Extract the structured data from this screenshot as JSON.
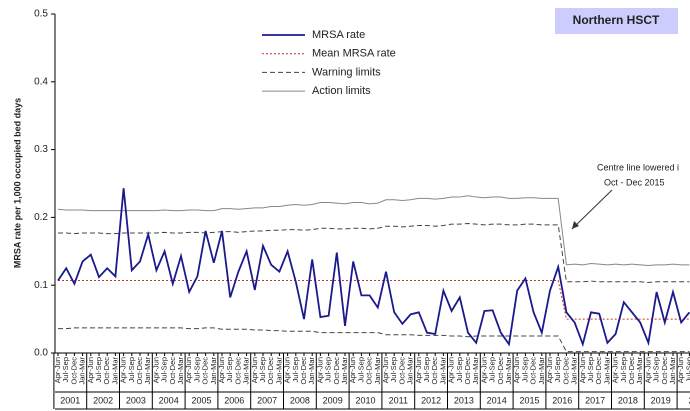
{
  "chart_data": {
    "type": "line",
    "title": "Northern HSCT",
    "ylabel": "MRSA rate per 1,000 occupied bed days",
    "annotation": [
      "Centre line lowered i",
      "Oct - Dec 2015"
    ],
    "ylim": [
      0,
      0.5
    ],
    "yticks": [
      {
        "value": 0,
        "label": "0.0"
      },
      {
        "value": 0.1,
        "label": "0.1"
      },
      {
        "value": 0.2,
        "label": "0.2"
      },
      {
        "value": 0.3,
        "label": "0.3"
      },
      {
        "value": 0.4,
        "label": "0.4"
      },
      {
        "value": 0.5,
        "label": "0.5"
      }
    ],
    "years": [
      "2001",
      "2002",
      "2003",
      "2004",
      "2005",
      "2006",
      "2007",
      "2008",
      "2009",
      "2010",
      "2011",
      "2012",
      "2013",
      "2014",
      "2015",
      "2016",
      "2017",
      "2018",
      "2019",
      "20"
    ],
    "categories": [
      "Apr-Jun",
      "Jul-Sep",
      "Oct-Dec",
      "Jan-Mar",
      "Apr-Jun",
      "Jul-Sep",
      "Oct-Dec",
      "Jan-Mar",
      "Apr-Jun",
      "Jul-Sep",
      "Oct-Dec",
      "Jan-Mar",
      "Apr-Jun",
      "Jul-Sep",
      "Oct-Dec",
      "Jan-Mar",
      "Apr-Jun",
      "Jul-Sep",
      "Oct-Dec",
      "Jan-Mar",
      "Apr-Jun",
      "Jul-Sep",
      "Oct-Dec",
      "Jan-Mar",
      "Apr-Jun",
      "Jul-Sep",
      "Oct-Dec",
      "Jan-Mar",
      "Apr-Jun",
      "Jul-Sep",
      "Oct-Dec",
      "Jan-Mar",
      "Apr-Jun",
      "Jul-Sep",
      "Oct-Dec",
      "Jan-Mar",
      "Apr-Jun",
      "Jul-Sep",
      "Oct-Dec",
      "Jan-Mar",
      "Apr-Jun",
      "Jul-Sep",
      "Oct-Dec",
      "Jan-Mar",
      "Apr-Jun",
      "Jul-Sep",
      "Oct-Dec",
      "Jan-Mar",
      "Apr-Jun",
      "Jul-Sep",
      "Oct-Dec",
      "Jan-Mar",
      "Apr-Jun",
      "Jul-Sep",
      "Oct-Dec",
      "Jan-Mar",
      "Apr-Jun",
      "Jul-Sep",
      "Oct-Dec",
      "Jan-Mar",
      "Apr-Jun",
      "Jul-Sep",
      "Oct-Dec",
      "Jan-Mar",
      "Apr-Jun",
      "Jul-Sep",
      "Oct-Dec",
      "Jan-Mar",
      "Apr-Jun",
      "Jul-Sep",
      "Oct-Dec",
      "Jan-Mar",
      "Apr-Jun",
      "Jul-Sep",
      "Oct-Dec",
      "Jan-Mar",
      "Apr-Jun",
      "Jul-Sep"
    ],
    "series": [
      {
        "name": "MRSA rate",
        "color": "#1a1a8c",
        "style": "solid",
        "values": [
          0.107,
          0.125,
          0.102,
          0.135,
          0.145,
          0.112,
          0.125,
          0.113,
          0.243,
          0.122,
          0.135,
          0.175,
          0.122,
          0.15,
          0.102,
          0.143,
          0.09,
          0.113,
          0.18,
          0.133,
          0.18,
          0.082,
          0.12,
          0.15,
          0.093,
          0.158,
          0.13,
          0.12,
          0.15,
          0.105,
          0.05,
          0.138,
          0.053,
          0.055,
          0.148,
          0.04,
          0.135,
          0.085,
          0.085,
          0.067,
          0.12,
          0.06,
          0.043,
          0.057,
          0.06,
          0.03,
          0.028,
          0.092,
          0.062,
          0.082,
          0.03,
          0.015,
          0.062,
          0.063,
          0.03,
          0.013,
          0.092,
          0.11,
          0.06,
          0.03,
          0.092,
          0.127,
          0.06,
          0.045,
          0.013,
          0.06,
          0.058,
          0.015,
          0.028,
          0.075,
          0.06,
          0.045,
          0.015,
          0.09,
          0.045,
          0.09,
          0.045,
          0.06
        ]
      },
      {
        "name": "Mean MRSA rate",
        "color": "#c0392b",
        "style": "dotted",
        "values": [
          0.107,
          0.107,
          0.107,
          0.107,
          0.107,
          0.107,
          0.107,
          0.107,
          0.107,
          0.107,
          0.107,
          0.107,
          0.107,
          0.107,
          0.107,
          0.107,
          0.107,
          0.107,
          0.107,
          0.107,
          0.107,
          0.107,
          0.107,
          0.107,
          0.107,
          0.107,
          0.107,
          0.107,
          0.107,
          0.107,
          0.107,
          0.107,
          0.107,
          0.107,
          0.107,
          0.107,
          0.107,
          0.107,
          0.107,
          0.107,
          0.107,
          0.107,
          0.107,
          0.107,
          0.107,
          0.107,
          0.107,
          0.107,
          0.107,
          0.107,
          0.107,
          0.107,
          0.107,
          0.107,
          0.107,
          0.107,
          0.107,
          0.107,
          0.107,
          0.107,
          0.107,
          0.107,
          0.05,
          0.05,
          0.05,
          0.05,
          0.05,
          0.05,
          0.05,
          0.05,
          0.05,
          0.05,
          0.05,
          0.05,
          0.05,
          0.05,
          0.05,
          0.05
        ]
      },
      {
        "name": "Warning limits",
        "color": "#444444",
        "style": "dashed",
        "upper": [
          0.177,
          0.177,
          0.176,
          0.177,
          0.177,
          0.177,
          0.176,
          0.176,
          0.177,
          0.177,
          0.177,
          0.177,
          0.177,
          0.178,
          0.177,
          0.177,
          0.178,
          0.178,
          0.177,
          0.178,
          0.179,
          0.179,
          0.178,
          0.179,
          0.18,
          0.18,
          0.181,
          0.181,
          0.182,
          0.182,
          0.181,
          0.182,
          0.184,
          0.184,
          0.183,
          0.183,
          0.184,
          0.184,
          0.183,
          0.184,
          0.187,
          0.187,
          0.186,
          0.187,
          0.188,
          0.188,
          0.187,
          0.188,
          0.19,
          0.19,
          0.191,
          0.19,
          0.189,
          0.19,
          0.19,
          0.189,
          0.189,
          0.19,
          0.19,
          0.189,
          0.189,
          0.189,
          0.105,
          0.105,
          0.105,
          0.106,
          0.105,
          0.105,
          0.105,
          0.105,
          0.105,
          0.105,
          0.104,
          0.105,
          0.105,
          0.105,
          0.105,
          0.105
        ],
        "lower": [
          0.036,
          0.036,
          0.037,
          0.037,
          0.037,
          0.037,
          0.037,
          0.037,
          0.037,
          0.037,
          0.037,
          0.037,
          0.037,
          0.037,
          0.037,
          0.037,
          0.036,
          0.036,
          0.037,
          0.037,
          0.035,
          0.035,
          0.035,
          0.035,
          0.034,
          0.034,
          0.033,
          0.033,
          0.032,
          0.032,
          0.032,
          0.032,
          0.03,
          0.03,
          0.03,
          0.03,
          0.03,
          0.03,
          0.03,
          0.03,
          0.027,
          0.027,
          0.027,
          0.027,
          0.026,
          0.026,
          0.026,
          0.026,
          0.025,
          0.025,
          0.024,
          0.025,
          0.025,
          0.025,
          0.025,
          0.025,
          0.025,
          0.025,
          0.025,
          0.025,
          0.025,
          0.025,
          0.002,
          0.002,
          0.002,
          0.002,
          0.002,
          0.002,
          0.002,
          0.002,
          0.002,
          0.002,
          0.002,
          0.002,
          0.002,
          0.002,
          0.002,
          0.002
        ]
      },
      {
        "name": "Action limits",
        "color": "#888888",
        "style": "solid",
        "upper": [
          0.212,
          0.211,
          0.211,
          0.211,
          0.21,
          0.21,
          0.21,
          0.21,
          0.21,
          0.21,
          0.21,
          0.21,
          0.21,
          0.211,
          0.21,
          0.21,
          0.211,
          0.211,
          0.21,
          0.21,
          0.213,
          0.213,
          0.212,
          0.213,
          0.214,
          0.214,
          0.216,
          0.216,
          0.218,
          0.219,
          0.218,
          0.219,
          0.222,
          0.222,
          0.221,
          0.22,
          0.222,
          0.222,
          0.22,
          0.221,
          0.226,
          0.226,
          0.225,
          0.226,
          0.228,
          0.228,
          0.227,
          0.228,
          0.23,
          0.23,
          0.232,
          0.23,
          0.229,
          0.23,
          0.23,
          0.228,
          0.228,
          0.229,
          0.229,
          0.228,
          0.228,
          0.228,
          0.13,
          0.131,
          0.13,
          0.132,
          0.131,
          0.13,
          0.131,
          0.13,
          0.131,
          0.13,
          0.129,
          0.13,
          0.13,
          0.131,
          0.13,
          0.13
        ]
      }
    ]
  }
}
